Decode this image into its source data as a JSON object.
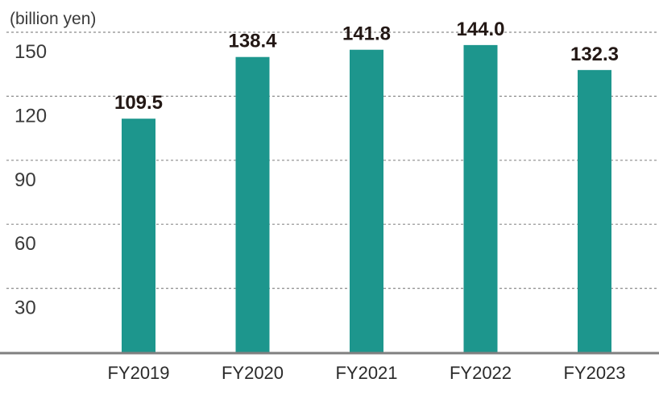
{
  "chart_data": {
    "type": "bar",
    "unit_label": "(billion yen)",
    "categories": [
      "FY2019",
      "FY2020",
      "FY2021",
      "FY2022",
      "FY2023"
    ],
    "values": [
      109.5,
      138.4,
      141.8,
      144.0,
      132.3
    ],
    "data_labels": [
      "109.5",
      "138.4",
      "141.8",
      "144.0",
      "132.3"
    ],
    "y_ticks": [
      30,
      60,
      90,
      120,
      150
    ],
    "ylim": [
      0,
      150
    ],
    "grid": true,
    "bar_color": "#1d968d",
    "grid_color": "#8c8c8c",
    "axis_color": "#808080"
  }
}
